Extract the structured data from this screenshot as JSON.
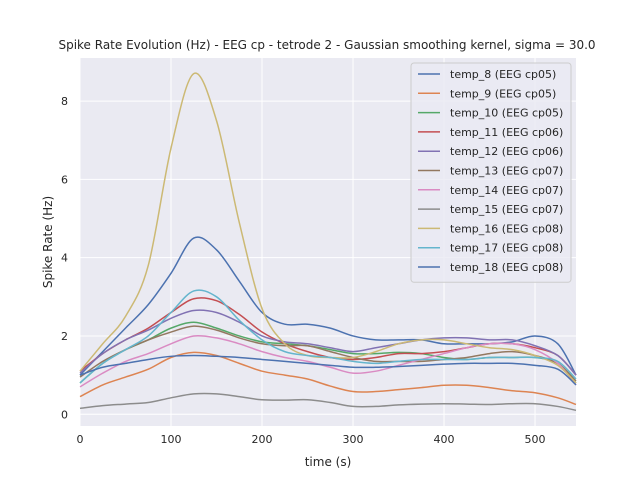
{
  "chart_data": {
    "type": "line",
    "title": "Spike Rate Evolution (Hz) - EEG cp - tetrode 2 - Gaussian smoothing kernel, sigma = 30.0",
    "xlabel": "time (s)",
    "ylabel": "Spike Rate (Hz)",
    "xlim": [
      0,
      545
    ],
    "ylim": [
      -0.3,
      9.1
    ],
    "xticks": [
      0,
      100,
      200,
      300,
      400,
      500
    ],
    "yticks": [
      0,
      2,
      4,
      6,
      8
    ],
    "grid": true,
    "legend_position": "top-right",
    "x": [
      0,
      25,
      50,
      75,
      100,
      125,
      150,
      175,
      200,
      225,
      250,
      275,
      300,
      325,
      350,
      375,
      400,
      425,
      450,
      475,
      500,
      525,
      545
    ],
    "series": [
      {
        "name": "temp_8 (EEG cp05)",
        "color": "#4c72b0",
        "values": [
          1.0,
          1.6,
          2.2,
          2.8,
          3.6,
          4.5,
          4.2,
          3.4,
          2.6,
          2.3,
          2.3,
          2.2,
          2.0,
          1.9,
          1.9,
          1.9,
          1.8,
          1.8,
          1.8,
          1.85,
          2.0,
          1.8,
          1.0
        ]
      },
      {
        "name": "temp_9 (EEG cp05)",
        "color": "#dd8452",
        "values": [
          0.45,
          0.75,
          0.95,
          1.15,
          1.45,
          1.58,
          1.5,
          1.3,
          1.1,
          1.0,
          0.9,
          0.72,
          0.58,
          0.58,
          0.63,
          0.68,
          0.74,
          0.74,
          0.68,
          0.6,
          0.55,
          0.42,
          0.25
        ]
      },
      {
        "name": "temp_10 (EEG cp05)",
        "color": "#55a868",
        "values": [
          0.8,
          1.3,
          1.65,
          1.9,
          2.2,
          2.35,
          2.2,
          2.0,
          1.85,
          1.8,
          1.75,
          1.65,
          1.55,
          1.55,
          1.58,
          1.55,
          1.45,
          1.4,
          1.45,
          1.45,
          1.45,
          1.3,
          0.8
        ]
      },
      {
        "name": "temp_11 (EEG cp06)",
        "color": "#c44e52",
        "values": [
          1.1,
          1.55,
          1.9,
          2.2,
          2.6,
          2.95,
          2.9,
          2.55,
          2.1,
          1.8,
          1.6,
          1.45,
          1.4,
          1.45,
          1.55,
          1.55,
          1.6,
          1.7,
          1.8,
          1.8,
          1.7,
          1.5,
          1.0
        ]
      },
      {
        "name": "temp_12 (EEG cp06)",
        "color": "#8172b3",
        "values": [
          1.05,
          1.55,
          1.9,
          2.15,
          2.45,
          2.65,
          2.6,
          2.35,
          2.0,
          1.85,
          1.8,
          1.7,
          1.6,
          1.7,
          1.8,
          1.9,
          1.95,
          1.95,
          1.9,
          1.9,
          1.75,
          1.5,
          1.0
        ]
      },
      {
        "name": "temp_13 (EEG cp07)",
        "color": "#937860",
        "values": [
          0.95,
          1.35,
          1.65,
          1.9,
          2.1,
          2.25,
          2.15,
          1.95,
          1.8,
          1.75,
          1.75,
          1.6,
          1.45,
          1.35,
          1.35,
          1.35,
          1.4,
          1.45,
          1.55,
          1.6,
          1.5,
          1.3,
          0.85
        ]
      },
      {
        "name": "temp_14 (EEG cp07)",
        "color": "#da8bc3",
        "values": [
          0.7,
          1.05,
          1.35,
          1.55,
          1.8,
          2.0,
          1.95,
          1.8,
          1.6,
          1.45,
          1.35,
          1.2,
          1.05,
          1.1,
          1.25,
          1.4,
          1.55,
          1.7,
          1.8,
          1.8,
          1.65,
          1.3,
          0.75
        ]
      },
      {
        "name": "temp_15 (EEG cp07)",
        "color": "#8c8c8c",
        "values": [
          0.15,
          0.22,
          0.26,
          0.3,
          0.42,
          0.52,
          0.52,
          0.45,
          0.37,
          0.36,
          0.37,
          0.3,
          0.2,
          0.2,
          0.24,
          0.26,
          0.27,
          0.26,
          0.25,
          0.27,
          0.27,
          0.2,
          0.1
        ]
      },
      {
        "name": "temp_16 (EEG cp08)",
        "color": "#ccb974",
        "values": [
          1.1,
          1.8,
          2.5,
          3.8,
          6.8,
          8.7,
          7.5,
          4.9,
          2.7,
          1.8,
          1.5,
          1.45,
          1.45,
          1.6,
          1.8,
          1.9,
          1.9,
          1.8,
          1.7,
          1.65,
          1.5,
          1.25,
          0.8
        ]
      },
      {
        "name": "temp_17 (EEG cp08)",
        "color": "#64b5cd",
        "values": [
          0.8,
          1.3,
          1.65,
          2.0,
          2.6,
          3.15,
          3.0,
          2.4,
          1.9,
          1.6,
          1.5,
          1.45,
          1.35,
          1.3,
          1.35,
          1.4,
          1.4,
          1.4,
          1.45,
          1.45,
          1.45,
          1.35,
          0.9
        ]
      },
      {
        "name": "temp_18 (EEG cp08)",
        "color": "#4c72b0",
        "values": [
          1.0,
          1.2,
          1.3,
          1.4,
          1.48,
          1.5,
          1.48,
          1.45,
          1.4,
          1.35,
          1.3,
          1.25,
          1.2,
          1.2,
          1.22,
          1.25,
          1.28,
          1.3,
          1.3,
          1.3,
          1.25,
          1.15,
          0.75
        ]
      }
    ]
  },
  "colors": {
    "plot_background": "#eaeaf2",
    "grid": "#ffffff",
    "text": "#262626"
  }
}
